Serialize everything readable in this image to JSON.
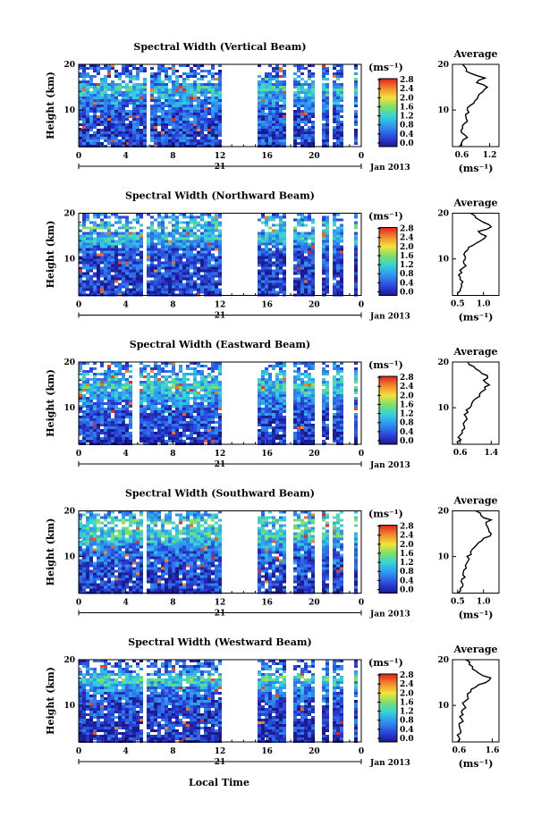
{
  "figure": {
    "xlabel": "Local Time",
    "date_label": "Jan 2013",
    "day_label": "21"
  },
  "chart_data": [
    {
      "type": "heatmap",
      "title": "Spectral Width (Vertical Beam)",
      "xlabel": "Local Time",
      "ylabel": "Height (km)",
      "x_ticks": [
        "0",
        "4",
        "8",
        "12",
        "16",
        "20",
        "0"
      ],
      "y_ticks": [
        "10",
        "20"
      ],
      "xlim": [
        0,
        24
      ],
      "ylim": [
        2,
        20
      ],
      "colorbar": {
        "label": "(ms⁻¹)",
        "ticks": [
          "0.0",
          "0.4",
          "0.8",
          "1.2",
          "1.6",
          "2.0",
          "2.4",
          "2.8"
        ],
        "range": [
          0.0,
          3.0
        ]
      },
      "data_gaps_hours": [
        [
          5.7,
          6.0
        ],
        [
          12.0,
          15.0
        ],
        [
          17.6,
          18.0
        ],
        [
          19.8,
          20.5
        ],
        [
          21.0,
          21.5
        ],
        [
          22.2,
          23.2
        ],
        [
          23.5,
          24.0
        ]
      ],
      "profile": {
        "title": "Average",
        "xlabel": "(ms⁻¹)",
        "x_ticks": [
          "0.6",
          "1.2"
        ],
        "xlim": [
          0.4,
          1.4
        ],
        "y_ticks": [
          "10",
          "20"
        ],
        "height_km": [
          2,
          3,
          4,
          5,
          6,
          7,
          8,
          9,
          10,
          11,
          12,
          13,
          14,
          15,
          16,
          17,
          18,
          19,
          20
        ],
        "values": [
          0.55,
          0.6,
          0.72,
          0.6,
          0.62,
          0.65,
          0.7,
          0.68,
          0.72,
          0.78,
          0.88,
          0.95,
          1.05,
          1.15,
          0.92,
          1.1,
          0.8,
          0.7,
          0.62
        ]
      }
    },
    {
      "type": "heatmap",
      "title": "Spectral Width (Northward Beam)",
      "xlabel": "Local Time",
      "ylabel": "Height (km)",
      "x_ticks": [
        "0",
        "4",
        "8",
        "12",
        "16",
        "20",
        "0"
      ],
      "y_ticks": [
        "10",
        "20"
      ],
      "xlim": [
        0,
        24
      ],
      "ylim": [
        2,
        20
      ],
      "colorbar": {
        "label": "(ms⁻¹)",
        "ticks": [
          "0.0",
          "0.4",
          "0.8",
          "1.2",
          "1.6",
          "2.0",
          "2.4",
          "2.8"
        ],
        "range": [
          0.0,
          3.0
        ]
      },
      "data_gaps_hours": [
        [
          5.3,
          5.7
        ],
        [
          12.0,
          15.0
        ],
        [
          17.6,
          18.0
        ],
        [
          19.8,
          20.5
        ],
        [
          21.0,
          21.5
        ],
        [
          22.2,
          23.2
        ],
        [
          23.5,
          24.0
        ]
      ],
      "profile": {
        "title": "Average",
        "xlabel": "(ms⁻¹)",
        "x_ticks": [
          "0.5",
          "1.0"
        ],
        "xlim": [
          0.4,
          1.3
        ],
        "y_ticks": [
          "10",
          "20"
        ],
        "height_km": [
          2,
          3,
          4,
          5,
          6,
          7,
          8,
          9,
          10,
          11,
          12,
          13,
          14,
          15,
          16,
          17,
          18,
          19,
          20
        ],
        "values": [
          0.5,
          0.55,
          0.58,
          0.6,
          0.55,
          0.58,
          0.6,
          0.62,
          0.65,
          0.62,
          0.7,
          0.8,
          0.95,
          1.05,
          0.9,
          1.15,
          1.0,
          0.85,
          0.75
        ]
      }
    },
    {
      "type": "heatmap",
      "title": "Spectral Width (Eastward Beam)",
      "xlabel": "Local Time",
      "ylabel": "Height (km)",
      "x_ticks": [
        "0",
        "4",
        "8",
        "12",
        "16",
        "20",
        "0"
      ],
      "y_ticks": [
        "10",
        "20"
      ],
      "xlim": [
        0,
        24
      ],
      "ylim": [
        2,
        20
      ],
      "colorbar": {
        "label": "(ms⁻¹)",
        "ticks": [
          "0.0",
          "0.4",
          "0.8",
          "1.2",
          "1.6",
          "2.0",
          "2.4",
          "2.8"
        ],
        "range": [
          0.0,
          3.0
        ]
      },
      "data_gaps_hours": [
        [
          4.5,
          5.0
        ],
        [
          12.0,
          15.0
        ],
        [
          17.6,
          18.0
        ],
        [
          19.8,
          20.5
        ],
        [
          21.0,
          21.5
        ],
        [
          22.2,
          23.2
        ],
        [
          23.5,
          24.0
        ]
      ],
      "profile": {
        "title": "Average",
        "xlabel": "",
        "x_ticks": [
          "0.6",
          "1.4"
        ],
        "xlim": [
          0.4,
          1.6
        ],
        "y_ticks": [
          "10",
          "20"
        ],
        "height_km": [
          2,
          3,
          4,
          5,
          6,
          7,
          8,
          9,
          10,
          11,
          12,
          13,
          14,
          15,
          16,
          17,
          18,
          19,
          20
        ],
        "values": [
          0.55,
          0.62,
          0.6,
          0.65,
          0.7,
          0.72,
          0.75,
          0.8,
          0.85,
          0.9,
          1.0,
          1.1,
          1.25,
          1.35,
          1.2,
          1.3,
          1.1,
          0.95,
          0.8
        ]
      }
    },
    {
      "type": "heatmap",
      "title": "Spectral Width (Southward Beam)",
      "xlabel": "Local Time",
      "ylabel": "Height (km)",
      "x_ticks": [
        "0",
        "4",
        "8",
        "12",
        "16",
        "20",
        "0"
      ],
      "y_ticks": [
        "10",
        "20"
      ],
      "xlim": [
        0,
        24
      ],
      "ylim": [
        2,
        20
      ],
      "colorbar": {
        "label": "(ms⁻¹)",
        "ticks": [
          "0.0",
          "0.4",
          "0.8",
          "1.2",
          "1.6",
          "2.0",
          "2.4",
          "2.8"
        ],
        "range": [
          0.0,
          3.0
        ]
      },
      "data_gaps_hours": [
        [
          5.3,
          5.7
        ],
        [
          12.0,
          15.0
        ],
        [
          17.6,
          18.0
        ],
        [
          19.8,
          20.5
        ],
        [
          21.0,
          21.5
        ],
        [
          22.2,
          23.2
        ],
        [
          23.5,
          24.0
        ]
      ],
      "profile": {
        "title": "Average",
        "xlabel": "(ms⁻¹)",
        "x_ticks": [
          "0.5",
          "1.0"
        ],
        "xlim": [
          0.4,
          1.3
        ],
        "y_ticks": [
          "10",
          "20"
        ],
        "height_km": [
          2,
          3,
          4,
          5,
          6,
          7,
          8,
          9,
          10,
          11,
          12,
          13,
          14,
          15,
          16,
          17,
          18,
          19,
          20
        ],
        "values": [
          0.5,
          0.55,
          0.6,
          0.58,
          0.6,
          0.62,
          0.65,
          0.7,
          0.68,
          0.75,
          0.82,
          0.9,
          1.0,
          1.15,
          1.1,
          1.05,
          1.15,
          0.95,
          0.85
        ]
      }
    },
    {
      "type": "heatmap",
      "title": "Spectral Width (Westward Beam)",
      "xlabel": "Local Time",
      "ylabel": "Height (km)",
      "x_ticks": [
        "0",
        "4",
        "8",
        "12",
        "16",
        "20",
        "0"
      ],
      "y_ticks": [
        "10",
        "20"
      ],
      "xlim": [
        0,
        24
      ],
      "ylim": [
        2,
        20
      ],
      "colorbar": {
        "label": "(ms⁻¹)",
        "ticks": [
          "0.0",
          "0.4",
          "0.8",
          "1.2",
          "1.6",
          "2.0",
          "2.4",
          "2.8"
        ],
        "range": [
          0.0,
          3.0
        ]
      },
      "data_gaps_hours": [
        [
          5.3,
          5.7
        ],
        [
          12.0,
          15.0
        ],
        [
          17.6,
          18.0
        ],
        [
          19.8,
          20.5
        ],
        [
          21.0,
          21.5
        ],
        [
          22.2,
          23.2
        ],
        [
          23.5,
          24.0
        ]
      ],
      "profile": {
        "title": "Average",
        "xlabel": "(ms⁻¹)",
        "x_ticks": [
          "0.6",
          "1.6"
        ],
        "xlim": [
          0.4,
          1.8
        ],
        "y_ticks": [
          "10",
          "20"
        ],
        "height_km": [
          2,
          3,
          4,
          5,
          6,
          7,
          8,
          9,
          10,
          11,
          12,
          13,
          14,
          15,
          16,
          17,
          18,
          19,
          20
        ],
        "values": [
          0.55,
          0.6,
          0.65,
          0.62,
          0.6,
          0.68,
          0.72,
          0.7,
          0.75,
          0.8,
          0.85,
          0.95,
          1.1,
          1.4,
          1.55,
          1.2,
          1.0,
          0.9,
          0.8
        ]
      }
    }
  ]
}
